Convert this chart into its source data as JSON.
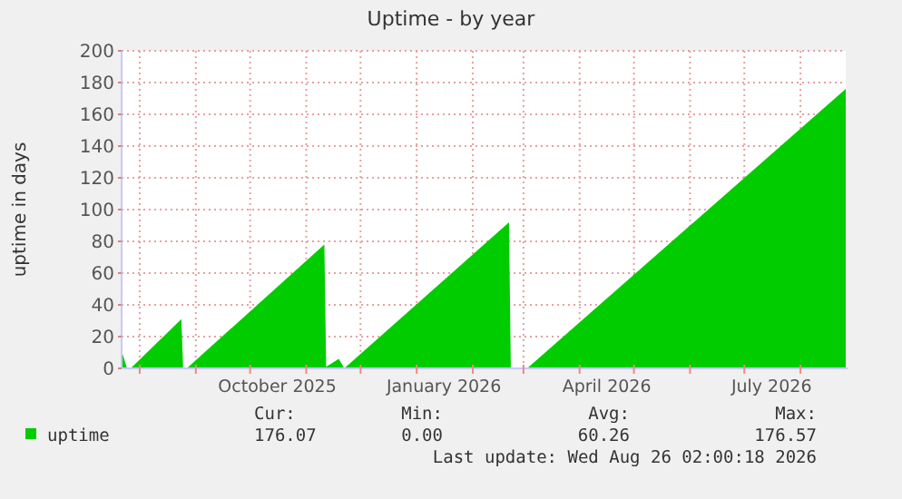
{
  "chart_data": {
    "type": "area",
    "title": "Uptime - by year",
    "ylabel": "uptime in days",
    "x": [
      "2025-07-22",
      "2025-07-25",
      "2025-07-27",
      "2025-08-24",
      "2025-08-25",
      "2025-08-27",
      "2025-11-11",
      "2025-11-12",
      "2025-11-19",
      "2025-11-22",
      "2026-02-21",
      "2026-02-22",
      "2026-02-26",
      "2026-03-03",
      "2026-08-26"
    ],
    "series": [
      {
        "name": "uptime",
        "color": "#00cc00",
        "values": [
          11,
          0,
          0,
          31,
          0,
          0,
          78,
          1,
          6,
          0,
          92,
          0,
          null,
          0,
          176
        ]
      }
    ],
    "xlim": [
      "2025-07-22",
      "2026-08-27"
    ],
    "xticks": [
      {
        "value": "2025-08-01",
        "label": null
      },
      {
        "value": "2025-09-01",
        "label": null
      },
      {
        "value": "2025-10-01",
        "label": null
      },
      {
        "value": "2025-10-16",
        "label": "October 2025"
      },
      {
        "value": "2025-11-01",
        "label": null
      },
      {
        "value": "2025-12-01",
        "label": null
      },
      {
        "value": "2026-01-01",
        "label": null
      },
      {
        "value": "2026-01-16",
        "label": "January 2026"
      },
      {
        "value": "2026-02-01",
        "label": null
      },
      {
        "value": "2026-03-01",
        "label": null
      },
      {
        "value": "2026-04-01",
        "label": null
      },
      {
        "value": "2026-04-16",
        "label": "April 2026"
      },
      {
        "value": "2026-05-01",
        "label": null
      },
      {
        "value": "2026-06-01",
        "label": null
      },
      {
        "value": "2026-07-01",
        "label": null
      },
      {
        "value": "2026-07-16",
        "label": "July 2026"
      },
      {
        "value": "2026-08-01",
        "label": null
      }
    ],
    "ylim": [
      0,
      200
    ],
    "yticks": [
      0,
      20,
      40,
      60,
      80,
      100,
      120,
      140,
      160,
      180,
      200
    ],
    "grid": true,
    "legend": "bottom left",
    "annotations": [
      "Cur:",
      "176.07",
      "Min:",
      "0.00",
      "Avg:",
      "60.26",
      "Max:",
      "176.57",
      "Last update: Wed Aug 26 02:00:18 2026"
    ]
  }
}
